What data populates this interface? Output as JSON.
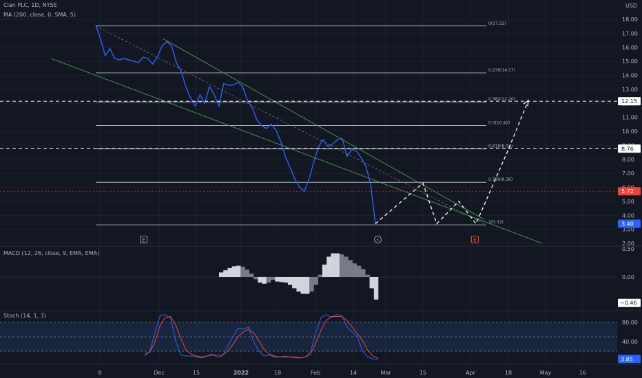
{
  "header": {
    "symbol": "Cian PLC, 1D, NYSE",
    "ma_indicator": "MA (200, close, 0, SMA, 5)",
    "macd_indicator": "MACD (12, 26, close, 9, EMA, EMA)",
    "stoch_indicator": "Stoch (14, 1, 3)"
  },
  "colors": {
    "background": "#131722",
    "price_line": "#2962ff",
    "channel": "#4caf50",
    "fib_line": "#d1d4dc",
    "stoch_k": "#2962ff",
    "stoch_d": "#f44336",
    "band_fill": "#1e3a5f",
    "last_price_badge": "#2962ff",
    "red_level_badge": "#f44336",
    "white_badge": "#ffffff"
  },
  "events": {
    "earnings_1": "E",
    "earnings_2": "E",
    "dividend_icon": "lightning-icon"
  },
  "chart_data": [
    {
      "type": "line",
      "title": "",
      "price_axis_label": "USD",
      "y_ticks": [
        "18.00",
        "17.00",
        "16.00",
        "15.00",
        "14.00",
        "13.00",
        "12.00",
        "11.00",
        "10.00",
        "9.00",
        "8.00",
        "7.00",
        "6.00",
        "5.00",
        "4.00",
        "3.00",
        "2.00"
      ],
      "x_ticks": [
        "8",
        "Dec",
        "15",
        "2022",
        "18",
        "Feb",
        "14",
        "Mar",
        "15",
        "Apr",
        "18",
        "May",
        "16"
      ],
      "ylim": [
        2,
        19.5
      ],
      "series": [
        {
          "values": [
            17.6,
            16.6,
            15.4,
            15.9,
            15.2,
            15.1,
            15.2,
            15.1,
            15.0,
            14.9,
            15.3,
            15.2,
            14.8,
            15.3,
            16.1,
            16.4,
            16.1,
            14.9,
            14.3,
            13.2,
            12.4,
            11.8,
            12.6,
            12.0,
            13.2,
            12.6,
            11.8,
            13.4,
            13.3,
            13.3,
            13.5,
            13.2,
            12.2,
            11.7,
            10.8,
            10.4,
            10.2,
            10.5,
            10.1,
            9.3,
            8.2,
            7.4,
            6.6,
            6.0,
            5.7,
            6.6,
            7.8,
            8.9,
            9.4,
            8.9,
            9.1,
            9.4,
            9.5,
            8.2,
            8.7,
            8.6,
            8.1,
            7.5,
            6.2,
            3.4
          ]
        }
      ],
      "levels": [
        {
          "label": "0(17.52)",
          "value": 17.52
        },
        {
          "label": "0.236(14.17)",
          "value": 14.17
        },
        {
          "label": "0.382(12.10)",
          "value": 12.1
        },
        {
          "label": "0.5(10.42)",
          "value": 10.42
        },
        {
          "label": "0.618(8.74)",
          "value": 8.74
        },
        {
          "label": "0.786(6.36)",
          "value": 6.36
        },
        {
          "label": "1(3.32)",
          "value": 3.32
        }
      ],
      "projection": [
        {
          "date": "Feb 25",
          "value": 3.4
        },
        {
          "date": "Mar 15",
          "value": 6.3
        },
        {
          "date": "Mar 22",
          "value": 3.4
        },
        {
          "date": "Mar 31",
          "value": 5.0
        },
        {
          "date": "Apr 5",
          "value": 3.4
        },
        {
          "date": "Apr 18",
          "value": 8.7
        },
        {
          "date": "Apr 28",
          "value": 12.2
        }
      ],
      "price_badges": [
        {
          "text": "12.15",
          "value": 12.15,
          "style": "white"
        },
        {
          "text": "8.76",
          "value": 8.76,
          "style": "white"
        },
        {
          "text": "5.72",
          "value": 5.72,
          "style": "red"
        },
        {
          "text": "3.40",
          "value": 3.4,
          "style": "blue"
        }
      ]
    },
    {
      "type": "bar",
      "title": "MACD",
      "y_ticks": [
        "0.50",
        "0.00"
      ],
      "ylim": [
        -0.55,
        0.55
      ],
      "last_value_badge": "−0.46"
    },
    {
      "type": "line",
      "title": "Stoch",
      "y_ticks": [
        "80.00",
        "40.00"
      ],
      "ylim": [
        0,
        100
      ],
      "band": [
        20,
        80
      ],
      "last_value_badge": "3.85"
    }
  ]
}
